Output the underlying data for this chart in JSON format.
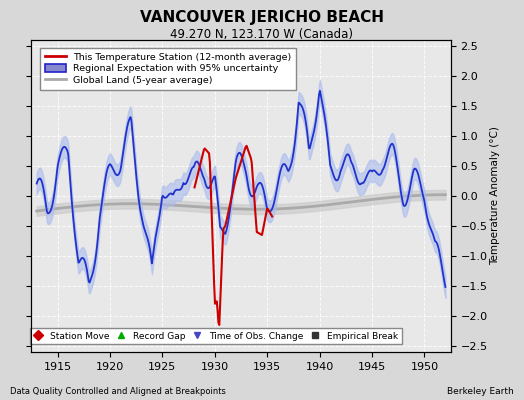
{
  "title": "VANCOUVER JERICHO BEACH",
  "subtitle": "49.270 N, 123.170 W (Canada)",
  "ylabel": "Temperature Anomaly (°C)",
  "xlabel_left": "Data Quality Controlled and Aligned at Breakpoints",
  "xlabel_right": "Berkeley Earth",
  "xlim": [
    1912.5,
    1952.5
  ],
  "ylim": [
    -2.6,
    2.6
  ],
  "yticks": [
    -2.5,
    -2.0,
    -1.5,
    -1.0,
    -0.5,
    0,
    0.5,
    1.0,
    1.5,
    2.0,
    2.5
  ],
  "xticks": [
    1915,
    1920,
    1925,
    1930,
    1935,
    1940,
    1945,
    1950
  ],
  "bg_color": "#d8d8d8",
  "plot_bg_color": "#e8e8e8",
  "legend_labels": [
    "This Temperature Station (12-month average)",
    "Regional Expectation with 95% uncertainty",
    "Global Land (5-year average)"
  ],
  "legend_line_color": "#cc0000",
  "legend_band_color": "#8888cc",
  "legend_band_edge": "#2222cc",
  "legend_gray_color": "#aaaaaa",
  "marker_labels": [
    "Station Move",
    "Record Gap",
    "Time of Obs. Change",
    "Empirical Break"
  ],
  "marker_colors": [
    "#cc0000",
    "#00aa00",
    "#4444cc",
    "#333333"
  ],
  "marker_styles": [
    "D",
    "^",
    "v",
    "s"
  ],
  "grid_color": "#ffffff",
  "regional_color": "#2233cc",
  "regional_band_color": "#aabbee",
  "station_color": "#cc0000",
  "global_color": "#aaaaaa",
  "global_band_color": "#cccccc"
}
